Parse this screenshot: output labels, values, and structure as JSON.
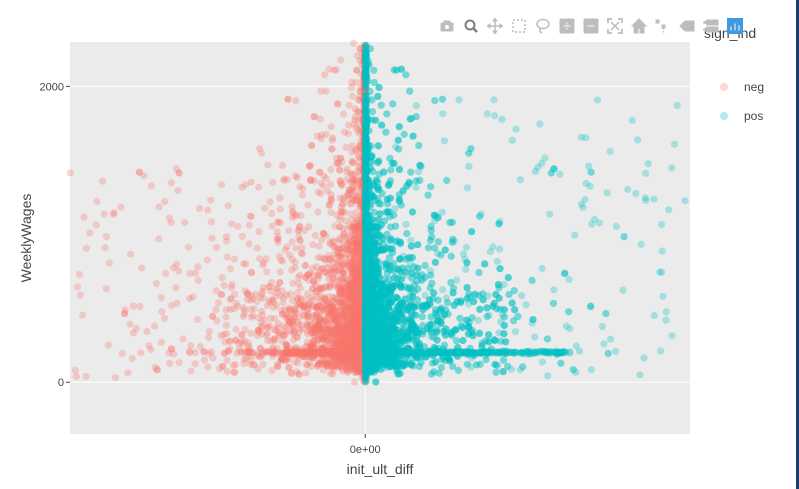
{
  "modebar": {
    "buttons": [
      {
        "name": "camera-icon"
      },
      {
        "name": "zoom-icon",
        "active": true
      },
      {
        "name": "pan-icon"
      },
      {
        "name": "box-select-icon"
      },
      {
        "name": "lasso-select-icon"
      },
      {
        "name": "zoom-in-icon"
      },
      {
        "name": "zoom-out-icon"
      },
      {
        "name": "autoscale-icon"
      },
      {
        "name": "reset-axes-icon"
      },
      {
        "name": "spike-lines-icon"
      },
      {
        "name": "hover-closest-icon"
      },
      {
        "name": "hover-compare-icon"
      },
      {
        "name": "plotly-logo-icon"
      }
    ],
    "icon_color": "#bdbdbd",
    "active_color": "#7f7f7f",
    "logo_color": "#3f9ae0"
  },
  "chart_data": {
    "type": "scatter",
    "title": "",
    "xlabel": "init_ult_diff",
    "ylabel": "WeeklyWages",
    "x_ticks": [
      {
        "value": 0,
        "label": "0e+00"
      }
    ],
    "y_ticks": [
      {
        "value": 0,
        "label": "0"
      },
      {
        "value": 2000,
        "label": "2000"
      }
    ],
    "xlim": [
      -1.0,
      1.1
    ],
    "ylim": [
      -350,
      2300
    ],
    "grid": true,
    "panel_background": "#ebebeb",
    "legend": {
      "title": "sign_ind",
      "placement": "right"
    },
    "series": [
      {
        "name": "neg",
        "color": "#f8766d",
        "side": "negative"
      },
      {
        "name": "pos",
        "color": "#00bfc4",
        "side": "positive"
      }
    ],
    "notes_points": "approximate scatter; ~7000 points per series concentrated near x=0 and low wages"
  }
}
